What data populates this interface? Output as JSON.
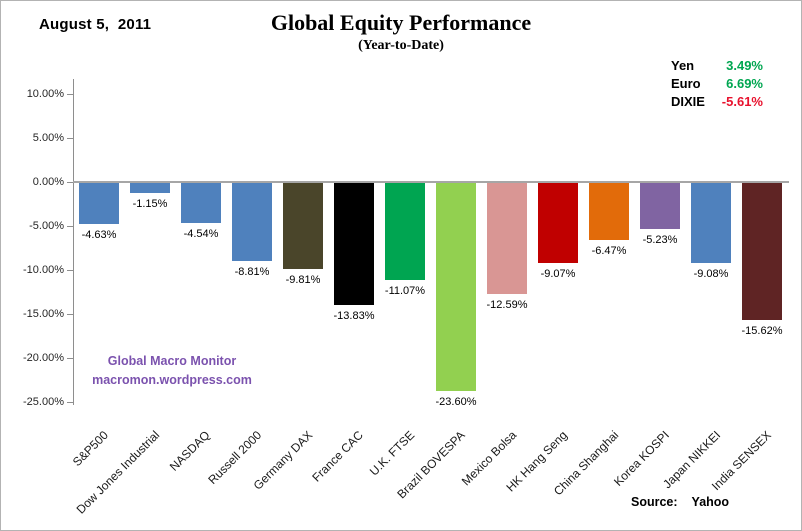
{
  "header": {
    "date": "August 5,  2011",
    "title": "Global Equity Performance",
    "subtitle": "(Year-to-Date)"
  },
  "fx_legend": {
    "items": [
      {
        "label": "Yen",
        "value": "3.49%",
        "color": "#00A651"
      },
      {
        "label": "Euro",
        "value": "6.69%",
        "color": "#00A651"
      },
      {
        "label": "DIXIE",
        "value": "-5.61%",
        "color": "#E8112D"
      }
    ]
  },
  "watermark": {
    "line1": "Global Macro Monitor",
    "line2": "macromon.wordpress.com",
    "color": "#7B52AE"
  },
  "source": {
    "label": "Source:",
    "value": "Yahoo"
  },
  "chart_data": {
    "type": "bar",
    "title": "Global Equity Performance",
    "subtitle": "(Year-to-Date)",
    "categories": [
      "S&P500",
      "Dow Jones Industrial",
      "NASDAQ",
      "Russell 2000",
      "Germany DAX",
      "France CAC",
      "U.K. FTSE",
      "Brazil BOVESPA",
      "Mexico Bolsa",
      "HK Hang Seng",
      "China Shanghai",
      "Korea KOSPI",
      "Japan NIKKEI",
      "India SENSEX"
    ],
    "values": [
      -4.63,
      -1.15,
      -4.54,
      -8.81,
      -9.81,
      -13.83,
      -11.07,
      -23.6,
      -12.59,
      -9.07,
      -6.47,
      -5.23,
      -9.08,
      -15.62
    ],
    "data_labels": [
      "-4.63%",
      "-1.15%",
      "-4.54%",
      "-8.81%",
      "-9.81%",
      "-13.83%",
      "-11.07%",
      "-23.60%",
      "-12.59%",
      "-9.07%",
      "-6.47%",
      "-5.23%",
      "-9.08%",
      "-15.62%"
    ],
    "bar_colors": [
      "#4F81BD",
      "#4F81BD",
      "#4F81BD",
      "#4F81BD",
      "#4A452A",
      "#000000",
      "#00A551",
      "#92D050",
      "#D99694",
      "#C00000",
      "#E26B0A",
      "#8064A2",
      "#4F81BD",
      "#5F2424"
    ],
    "y_ticks": [
      "10.00%",
      "5.00%",
      "0.00%",
      "-5.00%",
      "-10.00%",
      "-15.00%",
      "-20.00%",
      "-25.00%"
    ],
    "ylim": [
      -25,
      10
    ],
    "xlabel": "",
    "ylabel": "",
    "grid": false,
    "legend_position": "none",
    "data_label_position": "outside-end-below"
  }
}
